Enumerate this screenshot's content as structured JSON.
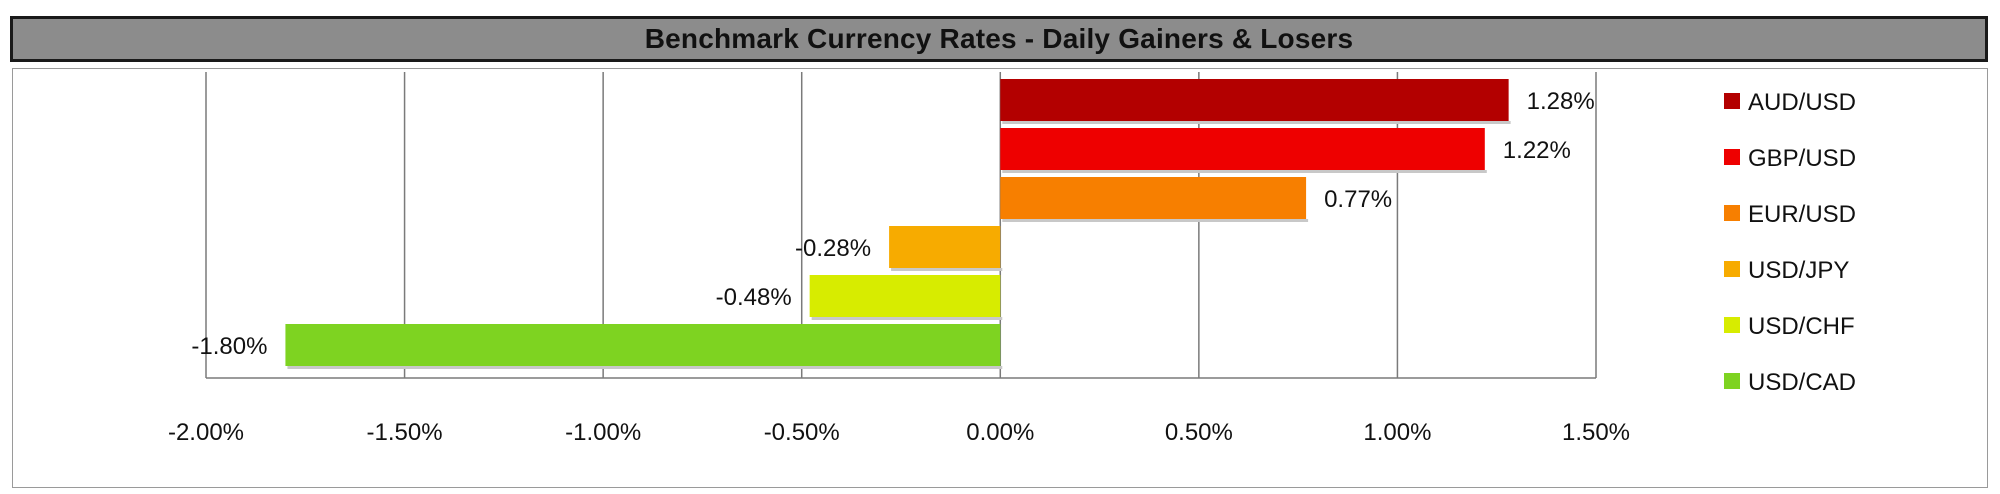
{
  "chart_data": {
    "type": "bar",
    "orientation": "horizontal",
    "title": "Benchmark Currency Rates - Daily Gainers & Losers",
    "xlabel": "",
    "ylabel": "",
    "xlim": [
      -2.0,
      1.5
    ],
    "x_ticks": [
      -2.0,
      -1.5,
      -1.0,
      -0.5,
      0.0,
      0.5,
      1.0,
      1.5
    ],
    "x_tick_labels": [
      "-2.00%",
      "-1.50%",
      "-1.00%",
      "-0.50%",
      "0.00%",
      "0.50%",
      "1.00%",
      "1.50%"
    ],
    "grid": "vertical",
    "legend_position": "right",
    "categories": [
      "AUD/USD",
      "GBP/USD",
      "EUR/USD",
      "USD/JPY",
      "USD/CHF",
      "USD/CAD"
    ],
    "values": [
      1.28,
      1.22,
      0.77,
      -0.28,
      -0.48,
      -1.8
    ],
    "value_labels": [
      "1.28%",
      "1.22%",
      "0.77%",
      "-0.28%",
      "-0.48%",
      "-1.80%"
    ],
    "colors": [
      "#b30000",
      "#ee0000",
      "#f77f00",
      "#f7ab00",
      "#d7ec00",
      "#7ed321"
    ]
  }
}
